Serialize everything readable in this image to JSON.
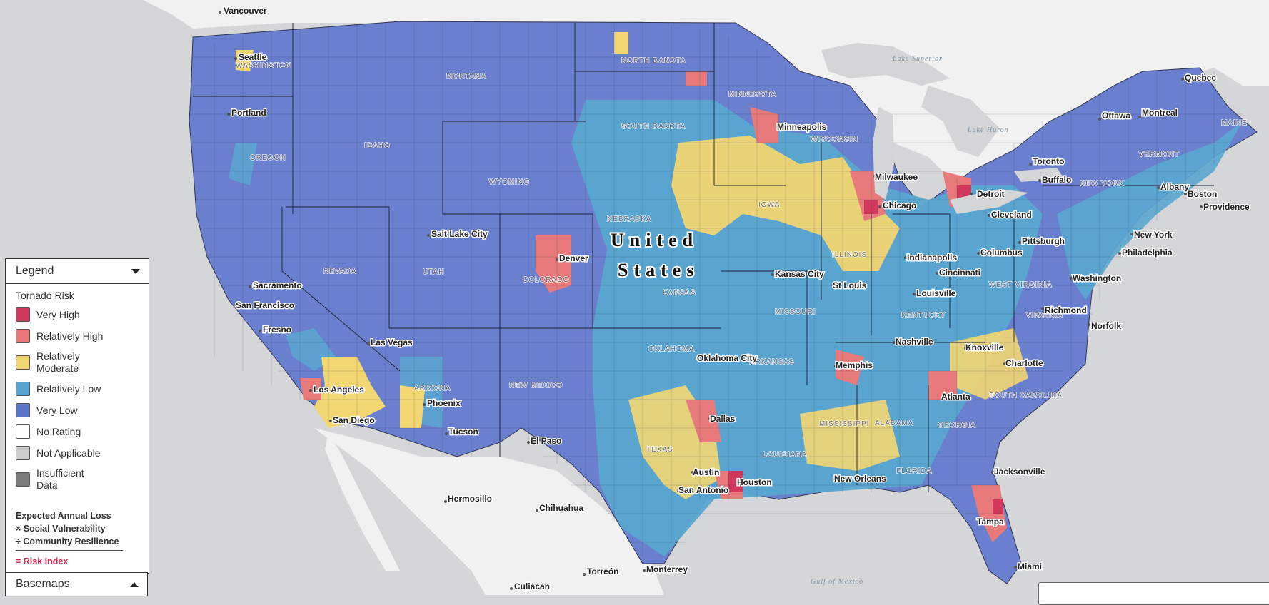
{
  "legend": {
    "header": "Legend",
    "title": "Tornado Risk",
    "items": [
      {
        "label": "Very High",
        "color": "#cf3a5e"
      },
      {
        "label": "Relatively High",
        "color": "#e8777a"
      },
      {
        "label": "Relatively Moderate",
        "color": "#f1d573"
      },
      {
        "label": "Relatively Low",
        "color": "#57a5cf"
      },
      {
        "label": "Very Low",
        "color": "#5b74c8"
      },
      {
        "label": "No Rating",
        "color": "#ffffff"
      },
      {
        "label": "Not Applicable",
        "color": "#cdcdcd"
      },
      {
        "label": "Insufficient Data",
        "color": "#7d7d7d"
      }
    ],
    "formula": {
      "line1": "Expected Annual Loss",
      "line2": "× Social Vulnerability",
      "line3": "÷ Community Resilience",
      "result": "= Risk Index"
    }
  },
  "basemaps": {
    "label": "Basemaps"
  },
  "map": {
    "country": [
      "United",
      "States"
    ],
    "cities": [
      "Vancouver",
      "Seattle",
      "Portland",
      "Sacramento",
      "San Francisco",
      "Fresno",
      "Los Angeles",
      "San Diego",
      "Las Vegas",
      "Phoenix",
      "Tucson",
      "Salt Lake City",
      "Denver",
      "El Paso",
      "Hermosillo",
      "Chihuahua",
      "Culiacan",
      "Torreón",
      "Monterrey",
      "Oklahoma City",
      "Kansas City",
      "Minneapolis",
      "Milwaukee",
      "Chicago",
      "Detroit",
      "St Louis",
      "Indianapolis",
      "Columbus",
      "Cincinnati",
      "Louisville",
      "Nashville",
      "Knoxville",
      "Memphis",
      "Dallas",
      "Austin",
      "San Antonio",
      "Houston",
      "New Orleans",
      "Atlanta",
      "Charlotte",
      "Jacksonville",
      "Tampa",
      "Miami",
      "Cleveland",
      "Pittsburgh",
      "Buffalo",
      "Toronto",
      "Ottawa",
      "Montreal",
      "Quebec",
      "Albany",
      "Boston",
      "Providence",
      "New York",
      "Philadelphia",
      "Washington",
      "Richmond",
      "Norfolk"
    ],
    "states": [
      "WASHINGTON",
      "MONTANA",
      "NORTH DAKOTA",
      "MINNESOTA",
      "SOUTH DAKOTA",
      "WISCONSIN",
      "OREGON",
      "IDAHO",
      "WYOMING",
      "NEBRASKA",
      "IOWA",
      "NEVADA",
      "UTAH",
      "COLORADO",
      "KANSAS",
      "ILLINOIS",
      "MISSOURI",
      "OKLAHOMA",
      "ARKANSAS",
      "KENTUCKY",
      "WEST VIRGINIA",
      "VIRGINIA",
      "ARIZONA",
      "NEW MEXICO",
      "TEXAS",
      "LOUISIANA",
      "MISSISSIPPI",
      "ALABAMA",
      "GEORGIA",
      "SOUTH CAROLINA",
      "FLORIDA",
      "NEW YORK",
      "VERMONT",
      "MAINE"
    ],
    "water": [
      "Lake Superior",
      "Lake Huron",
      "Gulf of Mexico"
    ],
    "colors": {
      "land": "#f1f1f1",
      "water": "#d3d5d7",
      "vlow": "#6b7fcf",
      "low": "#5aa7d0",
      "mod": "#f2d671",
      "high": "#e87a7b",
      "vhigh": "#d0385c"
    }
  }
}
